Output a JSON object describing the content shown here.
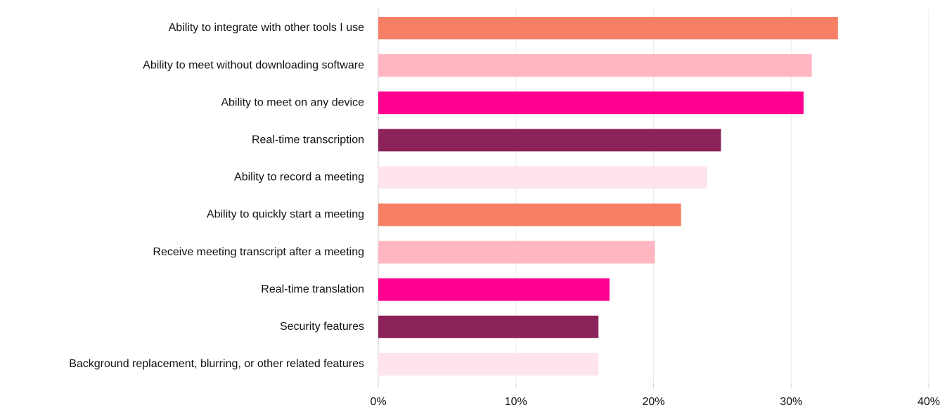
{
  "chart_data": {
    "type": "bar",
    "orientation": "horizontal",
    "categories": [
      "Ability to integrate with other tools I use",
      "Ability to meet without downloading software",
      "Ability to meet on any device",
      "Real-time transcription",
      "Ability to record a meeting",
      "Ability to quickly start a meeting",
      "Receive meeting transcript after a meeting",
      "Real-time translation",
      "Security features",
      "Background replacement, blurring, or other related features"
    ],
    "values": [
      33.4,
      31.5,
      30.9,
      24.9,
      23.9,
      22.0,
      20.1,
      16.8,
      16.0,
      16.0
    ],
    "colors": [
      "#f77f65",
      "#ffb6c1",
      "#ff0090",
      "#8b2259",
      "#ffe4f0",
      "#f77f65",
      "#ffb6c1",
      "#ff0090",
      "#8b2259",
      "#ffe4f0"
    ],
    "xlim": [
      0,
      40
    ],
    "xticks": [
      {
        "value": 0,
        "label": "0%"
      },
      {
        "value": 10,
        "label": "10%"
      },
      {
        "value": 20,
        "label": "20%"
      },
      {
        "value": 30,
        "label": "30%"
      },
      {
        "value": 40,
        "label": "40%"
      }
    ],
    "grid": true
  }
}
